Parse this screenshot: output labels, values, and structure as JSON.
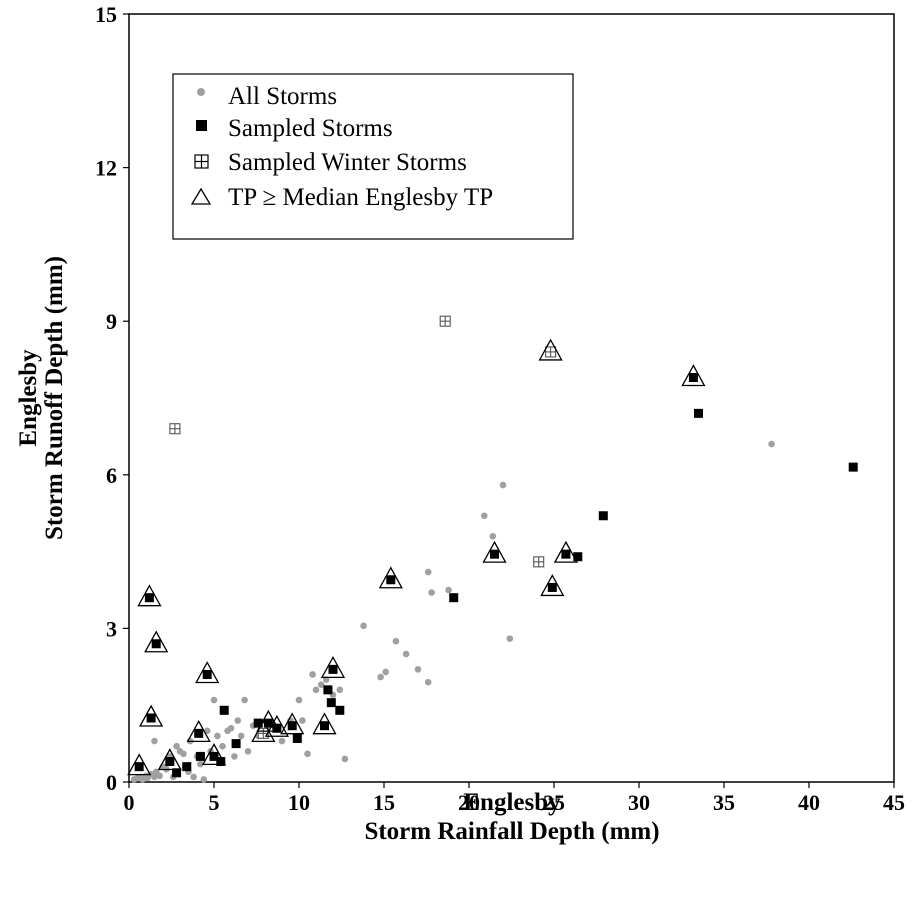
{
  "chart_data": {
    "type": "scatter",
    "xlabel_lines": [
      "Englesby",
      "Storm Rainfall Depth (mm)"
    ],
    "ylabel_lines": [
      "Englesby",
      "Storm Runoff Depth (mm)"
    ],
    "xlim": [
      0,
      45
    ],
    "ylim": [
      0,
      15
    ],
    "xticks": [
      0,
      5,
      10,
      15,
      20,
      25,
      30,
      35,
      40,
      45
    ],
    "yticks": [
      0,
      3,
      6,
      9,
      12,
      15
    ],
    "legend": {
      "placement": "top-left"
    },
    "grid": false,
    "series": [
      {
        "name": "All Storms",
        "marker": "circle",
        "color": "#a0a0a0",
        "points": [
          [
            0.3,
            0.05
          ],
          [
            0.5,
            0.08
          ],
          [
            0.7,
            0.1
          ],
          [
            0.8,
            0.05
          ],
          [
            1.0,
            0.12
          ],
          [
            1.1,
            0.08
          ],
          [
            1.3,
            0.15
          ],
          [
            1.5,
            0.1
          ],
          [
            1.6,
            0.2
          ],
          [
            1.8,
            0.12
          ],
          [
            2.0,
            0.3
          ],
          [
            2.2,
            0.25
          ],
          [
            2.4,
            0.5
          ],
          [
            2.6,
            0.1
          ],
          [
            2.8,
            0.7
          ],
          [
            3.0,
            0.6
          ],
          [
            3.2,
            0.55
          ],
          [
            3.3,
            0.3
          ],
          [
            3.5,
            0.2
          ],
          [
            3.6,
            0.8
          ],
          [
            3.8,
            0.1
          ],
          [
            4.0,
            0.5
          ],
          [
            4.2,
            0.35
          ],
          [
            4.4,
            0.05
          ],
          [
            4.6,
            1.0
          ],
          [
            4.8,
            0.6
          ],
          [
            5.0,
            1.6
          ],
          [
            5.2,
            0.9
          ],
          [
            5.5,
            0.7
          ],
          [
            5.8,
            1.0
          ],
          [
            6.0,
            1.05
          ],
          [
            6.2,
            0.5
          ],
          [
            6.4,
            1.2
          ],
          [
            6.6,
            0.9
          ],
          [
            6.8,
            1.6
          ],
          [
            7.0,
            0.6
          ],
          [
            7.3,
            1.1
          ],
          [
            7.6,
            0.9
          ],
          [
            8.5,
            1.1
          ],
          [
            9.0,
            0.8
          ],
          [
            9.5,
            1.2
          ],
          [
            10.0,
            1.6
          ],
          [
            10.2,
            1.2
          ],
          [
            10.5,
            0.55
          ],
          [
            10.8,
            2.1
          ],
          [
            11.0,
            1.8
          ],
          [
            11.3,
            1.9
          ],
          [
            11.6,
            2.0
          ],
          [
            12.0,
            1.7
          ],
          [
            12.4,
            1.8
          ],
          [
            12.7,
            0.45
          ],
          [
            13.8,
            3.05
          ],
          [
            14.8,
            2.05
          ],
          [
            15.1,
            2.15
          ],
          [
            15.7,
            2.75
          ],
          [
            16.3,
            2.5
          ],
          [
            17.0,
            2.2
          ],
          [
            17.6,
            1.95
          ],
          [
            17.8,
            3.7
          ],
          [
            17.6,
            4.1
          ],
          [
            18.8,
            3.75
          ],
          [
            20.9,
            5.2
          ],
          [
            21.4,
            4.8
          ],
          [
            22.0,
            5.8
          ],
          [
            22.4,
            2.8
          ],
          [
            37.8,
            6.6
          ],
          [
            1.5,
            0.8
          ],
          [
            2.5,
            0.4
          ]
        ]
      },
      {
        "name": "Sampled Storms",
        "marker": "square",
        "color": "#000000",
        "points": [
          [
            0.6,
            0.3
          ],
          [
            1.2,
            3.6
          ],
          [
            1.3,
            1.25
          ],
          [
            1.6,
            2.7
          ],
          [
            2.4,
            0.4
          ],
          [
            2.8,
            0.18
          ],
          [
            3.4,
            0.3
          ],
          [
            4.1,
            0.95
          ],
          [
            4.2,
            0.5
          ],
          [
            4.6,
            2.1
          ],
          [
            5.0,
            0.5
          ],
          [
            5.4,
            0.4
          ],
          [
            5.6,
            1.4
          ],
          [
            6.3,
            0.75
          ],
          [
            7.6,
            1.15
          ],
          [
            8.2,
            1.15
          ],
          [
            8.7,
            1.05
          ],
          [
            9.6,
            1.1
          ],
          [
            9.9,
            0.85
          ],
          [
            11.5,
            1.1
          ],
          [
            11.7,
            1.8
          ],
          [
            11.9,
            1.55
          ],
          [
            12.0,
            2.2
          ],
          [
            12.4,
            1.4
          ],
          [
            15.4,
            3.95
          ],
          [
            19.1,
            3.6
          ],
          [
            21.5,
            4.45
          ],
          [
            24.9,
            3.8
          ],
          [
            25.7,
            4.45
          ],
          [
            26.4,
            4.4
          ],
          [
            27.9,
            5.2
          ],
          [
            33.2,
            7.9
          ],
          [
            33.5,
            7.2
          ],
          [
            42.6,
            6.15
          ]
        ]
      },
      {
        "name": "Sampled Winter Storms",
        "marker": "square-cross",
        "color": "#555555",
        "points": [
          [
            2.7,
            6.9
          ],
          [
            18.6,
            9.0
          ],
          [
            24.8,
            8.4
          ],
          [
            24.1,
            4.3
          ],
          [
            7.9,
            0.95
          ]
        ]
      },
      {
        "name": "TP ≥ Median Englesby TP",
        "marker": "triangle",
        "color": "#000000",
        "points": [
          [
            0.6,
            0.3
          ],
          [
            1.2,
            3.6
          ],
          [
            1.3,
            1.25
          ],
          [
            1.6,
            2.7
          ],
          [
            2.4,
            0.4
          ],
          [
            4.1,
            0.95
          ],
          [
            4.6,
            2.1
          ],
          [
            5.0,
            0.5
          ],
          [
            7.9,
            0.95
          ],
          [
            8.2,
            1.15
          ],
          [
            8.7,
            1.05
          ],
          [
            9.6,
            1.1
          ],
          [
            11.5,
            1.1
          ],
          [
            12.0,
            2.2
          ],
          [
            15.4,
            3.95
          ],
          [
            21.5,
            4.45
          ],
          [
            24.8,
            8.4
          ],
          [
            24.9,
            3.8
          ],
          [
            25.7,
            4.45
          ],
          [
            33.2,
            7.9
          ]
        ]
      }
    ]
  }
}
